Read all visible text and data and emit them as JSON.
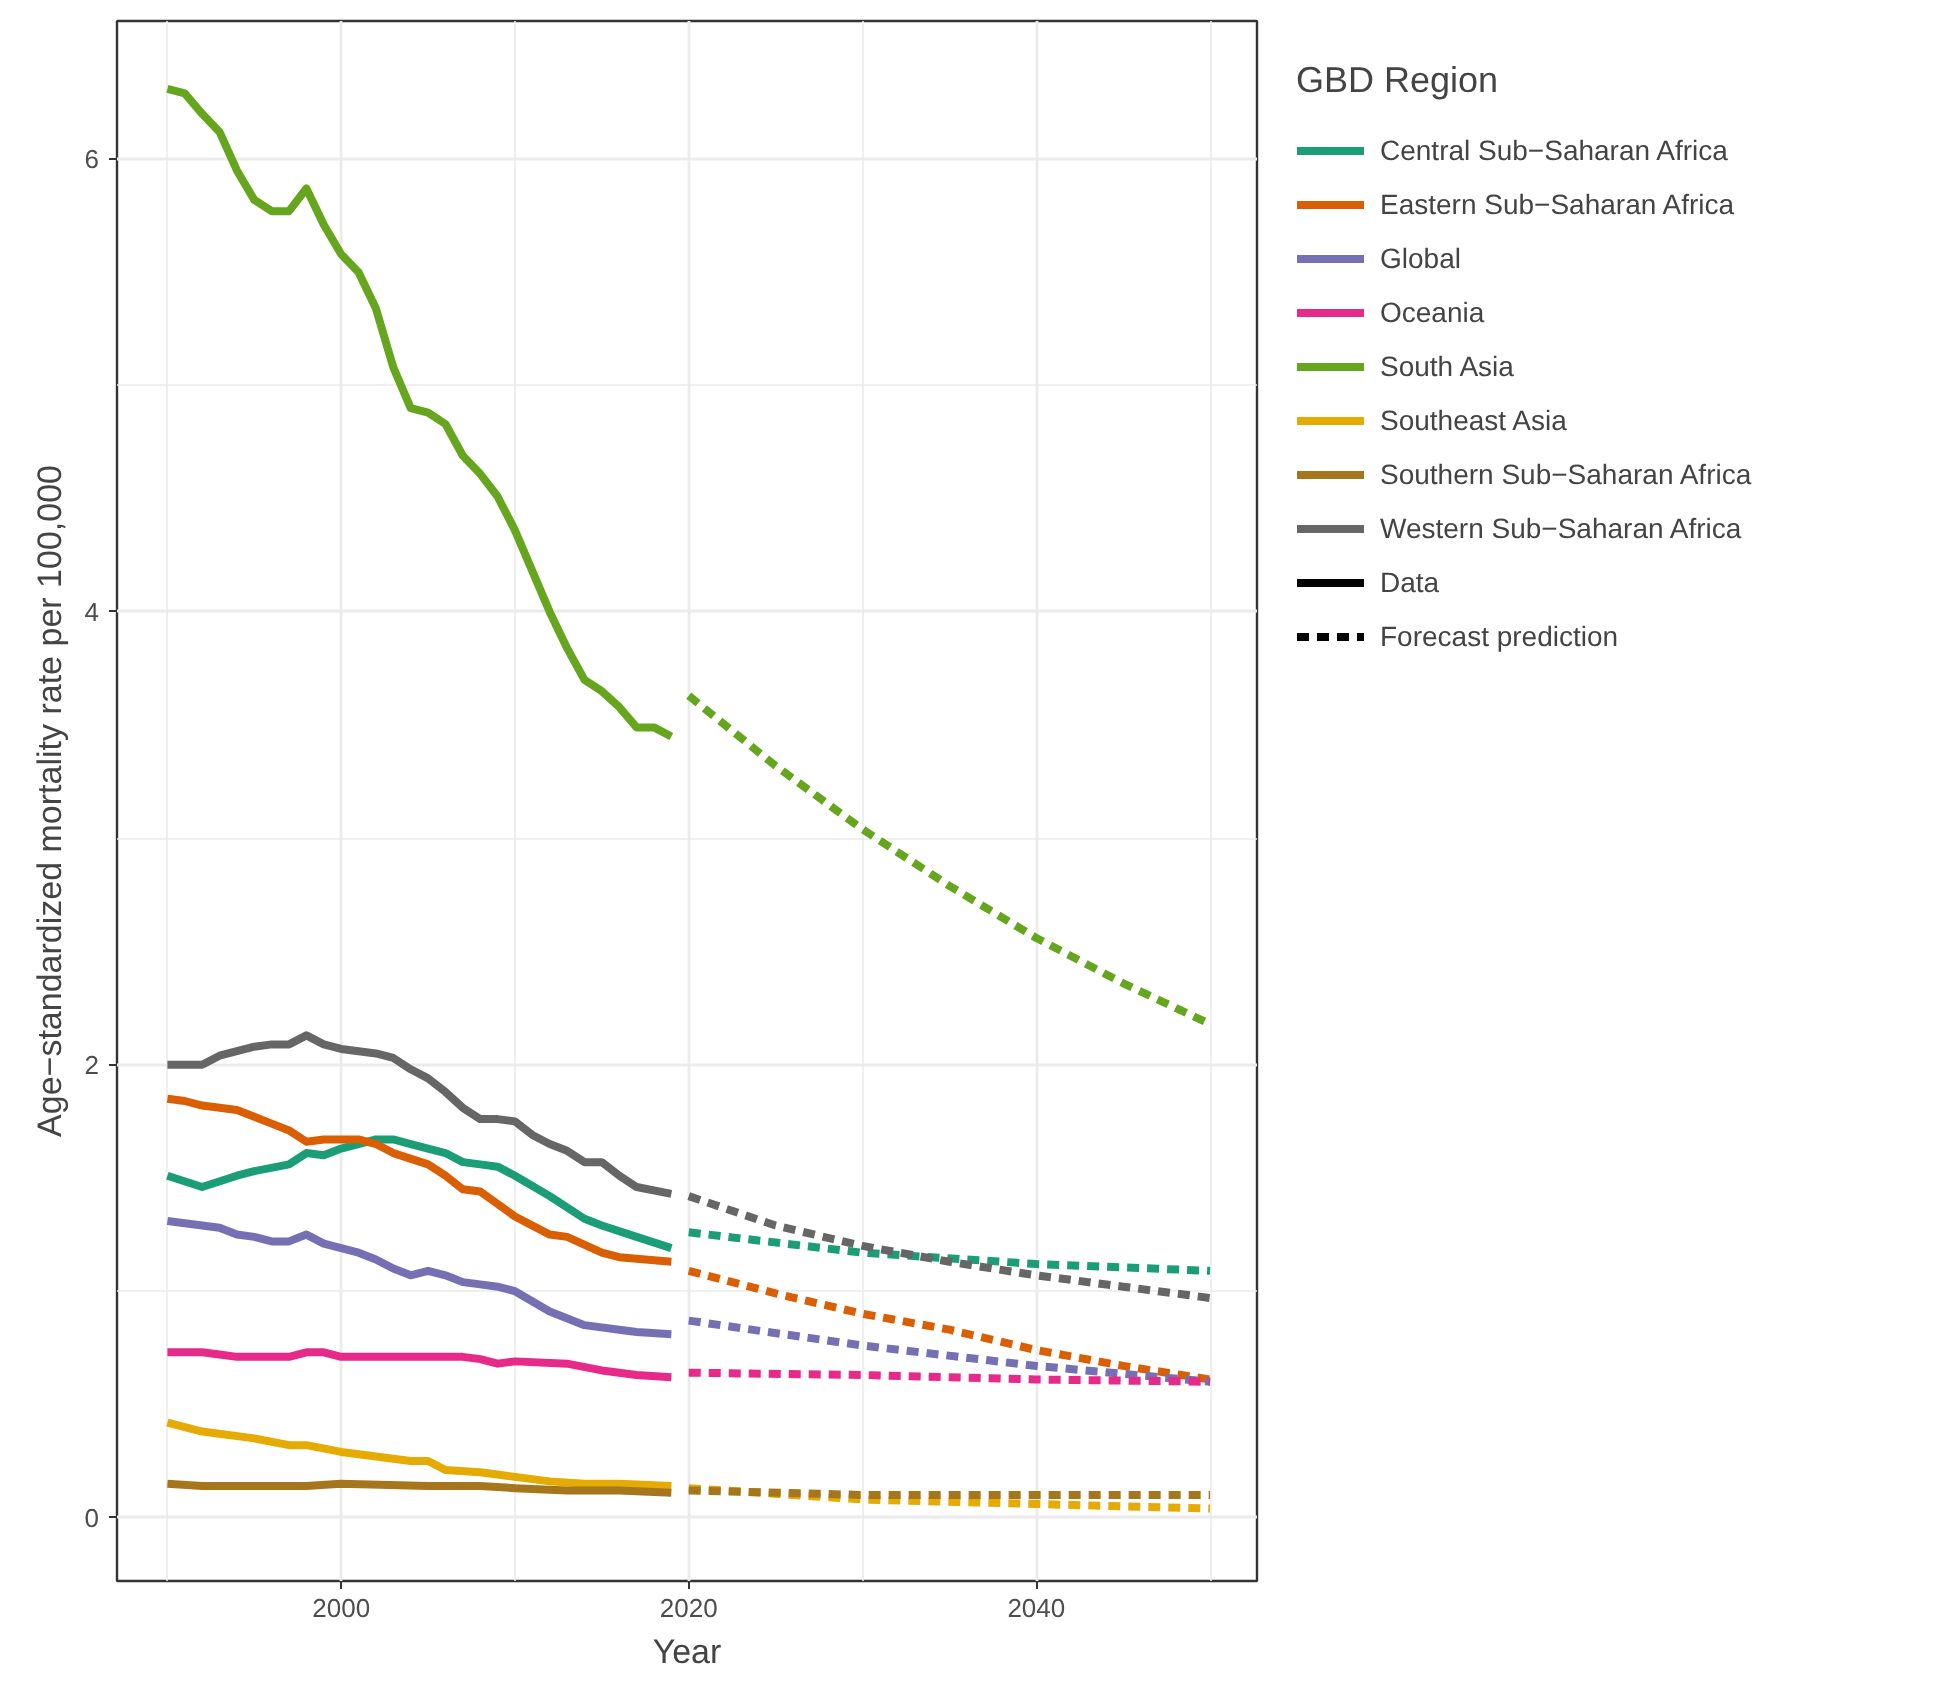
{
  "chart_data": {
    "type": "line",
    "xlabel": "Year",
    "ylabel": "Age−standardized mortality rate per 100,000",
    "legend_title": "GBD Region",
    "legend": "right",
    "grid": true,
    "line_style": "solid",
    "xlim": [
      1987.1,
      2052.7
    ],
    "ylim": [
      -0.28,
      6.61
    ],
    "xticks": [
      {
        "value": 1990,
        "label": null
      },
      2000,
      {
        "value": 2010,
        "label": null
      },
      2020,
      {
        "value": 2030,
        "label": null
      },
      2040,
      {
        "value": 2050,
        "label": null
      }
    ],
    "yticks": [
      0,
      {
        "value": 1,
        "label": null
      },
      2,
      {
        "value": 3,
        "label": null
      },
      4,
      {
        "value": 5,
        "label": null
      },
      6
    ],
    "annotations": [
      "Data",
      "Forecast prediction"
    ],
    "series": [
      {
        "name": "Central Sub−Saharan Africa",
        "color": "#1b9e77",
        "x": [
          1990,
          1992,
          1994,
          1995,
          1997,
          1998,
          1999,
          2000,
          2001,
          2002,
          2003,
          2004,
          2005,
          2006,
          2007,
          2008,
          2009,
          2010,
          2012,
          2014,
          2015,
          2017,
          2019
        ],
        "values": [
          1.51,
          1.46,
          1.51,
          1.53,
          1.56,
          1.61,
          1.6,
          1.63,
          1.65,
          1.67,
          1.67,
          1.65,
          1.63,
          1.61,
          1.57,
          1.56,
          1.55,
          1.51,
          1.42,
          1.32,
          1.29,
          1.24,
          1.19
        ]
      },
      {
        "name": "Eastern Sub−Saharan Africa",
        "color": "#d95f02",
        "x": [
          1990,
          1991,
          1992,
          1994,
          1995,
          1996,
          1997,
          1998,
          1999,
          2001,
          2002,
          2003,
          2005,
          2006,
          2007,
          2008,
          2010,
          2012,
          2013,
          2015,
          2016,
          2019
        ],
        "values": [
          1.85,
          1.84,
          1.82,
          1.8,
          1.77,
          1.74,
          1.71,
          1.66,
          1.67,
          1.67,
          1.65,
          1.61,
          1.56,
          1.51,
          1.45,
          1.44,
          1.33,
          1.25,
          1.24,
          1.17,
          1.15,
          1.13
        ]
      },
      {
        "name": "Global",
        "color": "#7570b3",
        "x": [
          1990,
          1992,
          1993,
          1994,
          1995,
          1996,
          1997,
          1998,
          1999,
          2000,
          2001,
          2002,
          2003,
          2004,
          2005,
          2006,
          2007,
          2008,
          2009,
          2010,
          2012,
          2014,
          2016,
          2017,
          2019
        ],
        "values": [
          1.31,
          1.29,
          1.28,
          1.25,
          1.24,
          1.22,
          1.22,
          1.25,
          1.21,
          1.19,
          1.17,
          1.14,
          1.1,
          1.07,
          1.09,
          1.07,
          1.04,
          1.03,
          1.02,
          1.0,
          0.91,
          0.85,
          0.83,
          0.82,
          0.81
        ]
      },
      {
        "name": "Oceania",
        "color": "#e7298a",
        "x": [
          1990,
          1992,
          1993,
          1994,
          1997,
          1998,
          1999,
          2000,
          2004,
          2006,
          2007,
          2008,
          2009,
          2010,
          2013,
          2015,
          2017,
          2019
        ],
        "values": [
          0.73,
          0.73,
          0.72,
          0.71,
          0.71,
          0.73,
          0.73,
          0.71,
          0.71,
          0.71,
          0.71,
          0.7,
          0.68,
          0.69,
          0.68,
          0.65,
          0.63,
          0.62
        ]
      },
      {
        "name": "South Asia",
        "color": "#66a61e",
        "x": [
          1990,
          1991,
          1992,
          1993,
          1994,
          1995,
          1996,
          1997,
          1998,
          1999,
          2000,
          2001,
          2002,
          2003,
          2004,
          2005,
          2006,
          2007,
          2008,
          2009,
          2010,
          2011,
          2012,
          2013,
          2014,
          2015,
          2016,
          2017,
          2018,
          2019
        ],
        "values": [
          6.31,
          6.29,
          6.2,
          6.12,
          5.95,
          5.82,
          5.77,
          5.77,
          5.87,
          5.71,
          5.58,
          5.5,
          5.34,
          5.08,
          4.9,
          4.88,
          4.83,
          4.69,
          4.61,
          4.51,
          4.36,
          4.18,
          4.0,
          3.84,
          3.7,
          3.65,
          3.58,
          3.49,
          3.49,
          3.45
        ]
      },
      {
        "name": "Southeast Asia",
        "color": "#e6ab02",
        "x": [
          1990,
          1992,
          1995,
          1997,
          1998,
          2000,
          2002,
          2004,
          2005,
          2006,
          2008,
          2009,
          2010,
          2012,
          2014,
          2016,
          2019
        ],
        "values": [
          0.42,
          0.38,
          0.35,
          0.32,
          0.32,
          0.29,
          0.27,
          0.25,
          0.25,
          0.21,
          0.2,
          0.19,
          0.18,
          0.16,
          0.15,
          0.15,
          0.14
        ]
      },
      {
        "name": "Southern Sub−Saharan Africa",
        "color": "#a6761d",
        "x": [
          1990,
          1992,
          1996,
          1998,
          2000,
          2005,
          2008,
          2010,
          2013,
          2016,
          2019
        ],
        "values": [
          0.15,
          0.14,
          0.14,
          0.14,
          0.15,
          0.14,
          0.14,
          0.13,
          0.12,
          0.12,
          0.11
        ]
      },
      {
        "name": "Western Sub−Saharan Africa",
        "color": "#666666",
        "x": [
          1990,
          1992,
          1993,
          1994,
          1995,
          1996,
          1997,
          1998,
          1999,
          2000,
          2002,
          2003,
          2004,
          2005,
          2006,
          2007,
          2008,
          2009,
          2010,
          2011,
          2012,
          2013,
          2014,
          2015,
          2016,
          2017,
          2019
        ],
        "values": [
          2.0,
          2.0,
          2.04,
          2.06,
          2.08,
          2.09,
          2.09,
          2.13,
          2.09,
          2.07,
          2.05,
          2.03,
          1.98,
          1.94,
          1.88,
          1.81,
          1.76,
          1.76,
          1.75,
          1.69,
          1.65,
          1.62,
          1.57,
          1.57,
          1.51,
          1.46,
          1.43
        ]
      },
      {
        "color": "#1b9e77",
        "line_style": "dashed",
        "x": [
          2020,
          2030,
          2040,
          2050
        ],
        "values": [
          1.26,
          1.17,
          1.12,
          1.09
        ]
      },
      {
        "color": "#d95f02",
        "line_style": "dashed",
        "x": [
          2020,
          2025,
          2030,
          2035,
          2040,
          2045,
          2050
        ],
        "values": [
          1.09,
          0.99,
          0.9,
          0.83,
          0.74,
          0.67,
          0.61
        ]
      },
      {
        "color": "#7570b3",
        "line_style": "dashed",
        "x": [
          2020,
          2030,
          2040,
          2050
        ],
        "values": [
          0.87,
          0.76,
          0.67,
          0.6
        ]
      },
      {
        "color": "#e7298a",
        "line_style": "dashed",
        "x": [
          2020,
          2030,
          2040,
          2050
        ],
        "values": [
          0.64,
          0.63,
          0.61,
          0.6
        ]
      },
      {
        "color": "#66a61e",
        "line_style": "dashed",
        "x": [
          2020,
          2025,
          2030,
          2035,
          2040,
          2045,
          2050
        ],
        "values": [
          3.63,
          3.32,
          3.04,
          2.79,
          2.56,
          2.36,
          2.18
        ]
      },
      {
        "color": "#e6ab02",
        "line_style": "dashed",
        "x": [
          2020,
          2030,
          2040,
          2050
        ],
        "values": [
          0.13,
          0.08,
          0.06,
          0.04
        ]
      },
      {
        "color": "#a6761d",
        "line_style": "dashed",
        "x": [
          2020,
          2030,
          2040,
          2050
        ],
        "values": [
          0.12,
          0.1,
          0.1,
          0.1
        ]
      },
      {
        "color": "#666666",
        "line_style": "dashed",
        "x": [
          2020,
          2025,
          2030,
          2035,
          2040,
          2045,
          2050
        ],
        "values": [
          1.42,
          1.29,
          1.2,
          1.13,
          1.07,
          1.02,
          0.97
        ]
      }
    ]
  }
}
